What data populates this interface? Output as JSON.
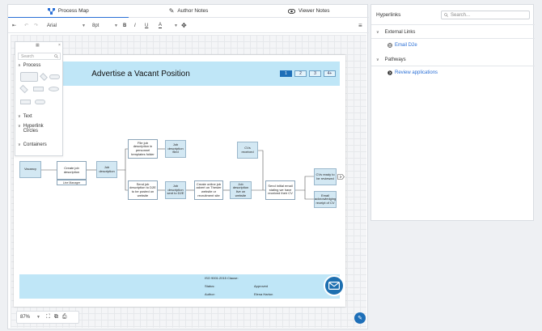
{
  "tabs": [
    {
      "label": "Process Map",
      "icon": "process-map-icon"
    },
    {
      "label": "Author Notes",
      "icon": "pencil-icon"
    },
    {
      "label": "Viewer Notes",
      "icon": "eye-icon"
    }
  ],
  "toolbar": {
    "font": "Arial",
    "size": "8pt"
  },
  "palette": {
    "search_placeholder": "Search",
    "sections": [
      "Process",
      "Text",
      "Hyperlink Circles",
      "Containers"
    ]
  },
  "diagram": {
    "title": "Advertise a Vacant Position",
    "pages": [
      "1",
      "2",
      "3",
      "4+"
    ],
    "nodes": {
      "vacancy": "Vacancy",
      "create_job": "Create job description",
      "line_manager": "Line Manager",
      "job_desc": "Job description",
      "file_job": "File job description in personnel templates folder",
      "job_filed": "Job description filed",
      "send_d2e": "Send job description to D2E to be posted on website",
      "job_sent": "Job description sent to D2E",
      "create_advert": "Create online job advert on Thesier website or recruitment site",
      "job_live": "Job description live on website",
      "cvs_received": "CVs received",
      "send_email": "Send initial email stating we have received their CV",
      "cvs_ready": "CVs ready to be reviewed",
      "email_ack": "Email acknowledging receipt of CV"
    },
    "footer": {
      "iso": "ISO 9001:2015 Clause:",
      "status_label": "Status:",
      "status_value": "Approved",
      "author_label": "Author:",
      "author_value": "Elena Harton"
    }
  },
  "zoom": {
    "value": "87%"
  },
  "right_panel": {
    "title": "Hyperlinks",
    "search_placeholder": "Search...",
    "sections": [
      {
        "label": "External Links",
        "item": "Email D2e",
        "icon": "globe-icon"
      },
      {
        "label": "Pathways",
        "item": "Review applications",
        "icon": "arrow-circle-icon"
      }
    ]
  }
}
